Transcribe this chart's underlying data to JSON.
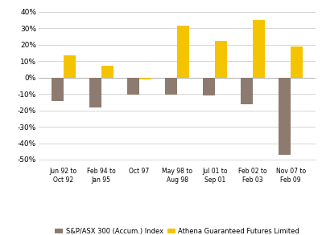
{
  "categories": [
    "Jun 92 to\nOct 92",
    "Feb 94 to\nJan 95",
    "Oct 97",
    "May 98 to\nAug 98",
    "Jul 01 to\nSep 01",
    "Feb 02 to\nFeb 03",
    "Nov 07 to\nFeb 09"
  ],
  "asx_values": [
    -14.5,
    -18.0,
    -10.5,
    -10.5,
    -11.0,
    -16.5,
    -47.0
  ],
  "athena_values": [
    13.5,
    7.0,
    -1.0,
    31.5,
    22.5,
    35.0,
    19.0
  ],
  "asx_color": "#8c7b6e",
  "athena_color": "#f5c400",
  "ylim": [
    -53,
    43
  ],
  "yticks": [
    -50,
    -40,
    -30,
    -20,
    -10,
    0,
    10,
    20,
    30,
    40
  ],
  "legend_labels": [
    "S&P/ASX 300 (Accum.) Index",
    "Athena Guaranteed Futures Limited"
  ],
  "background_color": "#ffffff",
  "grid_color": "#d0d0d0"
}
